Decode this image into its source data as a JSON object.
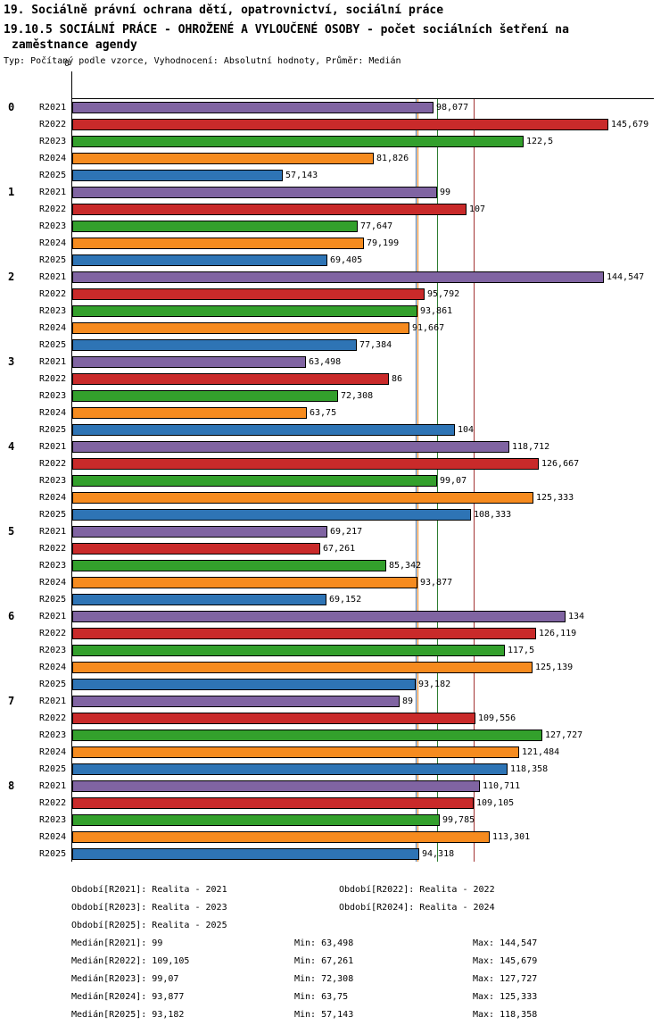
{
  "header": {
    "line1": "19. Sociálně právní ochrana dětí, opatrovnictví, sociální práce",
    "line2": "19.10.5 SOCIÁLNÍ PRÁCE - OHROŽENÉ A VYLOUČENÉ OSOBY - počet sociálních šetření na",
    "line3": "zaměstnance agendy",
    "meta": "Typ: Počítaný podle vzorce, Vyhodnocení: Absolutní hodnoty, Průměr: Medián"
  },
  "chart_data": {
    "type": "bar",
    "orientation": "horizontal",
    "title": "19.10.5 SOCIÁLNÍ PRÁCE - OHROŽENÉ A VYLOUČENÉ OSOBY - počet sociálních šetření na zaměstnance agendy",
    "xlabel": "",
    "ylabel": "",
    "xlim": [
      0,
      158
    ],
    "grid": false,
    "origin_tick_label": "0",
    "decimal_separator": ",",
    "legend_position": "bottom",
    "categories": [
      "0",
      "1",
      "2",
      "3",
      "4",
      "5",
      "6",
      "7",
      "8"
    ],
    "series": [
      {
        "name": "R2021",
        "legend": "Realita - 2021",
        "color": "#8064A2",
        "median_line_color": "#4A3C5E",
        "median": 99,
        "values": [
          98.077,
          99,
          144.547,
          63.498,
          118.712,
          69.217,
          134,
          89,
          110.711
        ]
      },
      {
        "name": "R2022",
        "legend": "Realita - 2022",
        "color": "#C92A2A",
        "median_line_color": "#A33434",
        "median": 109.105,
        "values": [
          145.679,
          107,
          95.792,
          86,
          126.667,
          67.261,
          126.119,
          109.556,
          109.105
        ]
      },
      {
        "name": "R2023",
        "legend": "Realita - 2023",
        "color": "#33A02C",
        "median_line_color": "#2E7D32",
        "median": 99.07,
        "values": [
          122.5,
          77.647,
          93.861,
          72.308,
          99.07,
          85.342,
          117.5,
          127.727,
          99.785
        ]
      },
      {
        "name": "R2024",
        "legend": "Realita - 2024",
        "color": "#F68B1F",
        "median_line_color": "#E8821A",
        "median": 93.877,
        "values": [
          81.826,
          79.199,
          91.667,
          63.75,
          125.333,
          93.877,
          125.139,
          121.484,
          113.301
        ]
      },
      {
        "name": "R2025",
        "legend": "Realita - 2025",
        "color": "#2E74B5",
        "median_line_color": "#4F7099",
        "median": 93.182,
        "values": [
          57.143,
          69.405,
          77.384,
          104,
          108.333,
          69.152,
          93.182,
          118.358,
          94.318
        ]
      }
    ]
  },
  "footer": {
    "legend": [
      [
        "Období[R2021]: Realita - 2021",
        "Období[R2022]: Realita - 2022"
      ],
      [
        "Období[R2023]: Realita - 2023",
        "Období[R2024]: Realita - 2024"
      ],
      [
        "Období[R2025]: Realita - 2025"
      ]
    ],
    "stats": [
      [
        "Medián[R2021]: 99",
        "Min: 63,498",
        "Max: 144,547"
      ],
      [
        "Medián[R2022]: 109,105",
        "Min: 67,261",
        "Max: 145,679"
      ],
      [
        "Medián[R2023]: 99,07",
        "Min: 72,308",
        "Max: 127,727"
      ],
      [
        "Medián[R2024]: 93,877",
        "Min: 63,75",
        "Max: 125,333"
      ],
      [
        "Medián[R2025]: 93,182",
        "Min: 57,143",
        "Max: 118,358"
      ]
    ]
  }
}
